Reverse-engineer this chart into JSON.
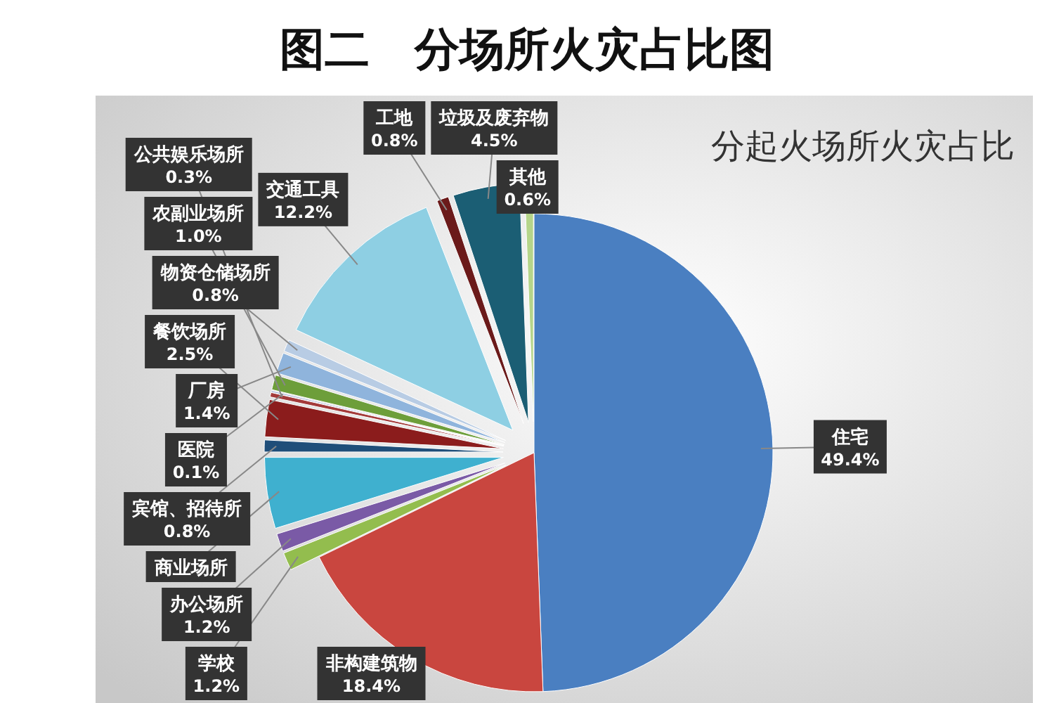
{
  "chart_data": {
    "type": "pie",
    "title": "图二　分场所火灾占比图",
    "subtitle": "分起火场所火灾占比",
    "categories": [
      "住宅",
      "非构建筑物",
      "学校",
      "办公场所",
      "商业场所",
      "宾馆、招待所",
      "餐饮场所",
      "公共娱乐场所",
      "医院",
      "农副业场所",
      "厂房",
      "物资仓储场所",
      "交通工具",
      "工地",
      "垃圾及废弃物",
      "其他"
    ],
    "values": [
      49.4,
      18.4,
      1.2,
      1.2,
      4.8,
      0.8,
      2.5,
      0.3,
      0.1,
      1.0,
      1.4,
      0.8,
      12.2,
      0.8,
      4.5,
      0.6
    ],
    "value_labels": [
      "49.4%",
      "18.4%",
      "1.2%",
      "1.2%",
      null,
      "0.8%",
      "2.5%",
      "0.3%",
      "0.1%",
      "1.0%",
      "1.4%",
      "0.8%",
      "12.2%",
      "0.8%",
      "4.5%",
      "0.6%"
    ],
    "colors": [
      "#4a7fc1",
      "#c9463f",
      "#93bd4e",
      "#7a5aa6",
      "#3fb0cf",
      "#1f4e79",
      "#8b1c1c",
      "#a33a3a",
      "#9aa8d0",
      "#6d9e3a",
      "#8fb4dc",
      "#b8cce4",
      "#8ecfe3",
      "#6b1a1a",
      "#1b5e74",
      "#b5d58a"
    ]
  }
}
